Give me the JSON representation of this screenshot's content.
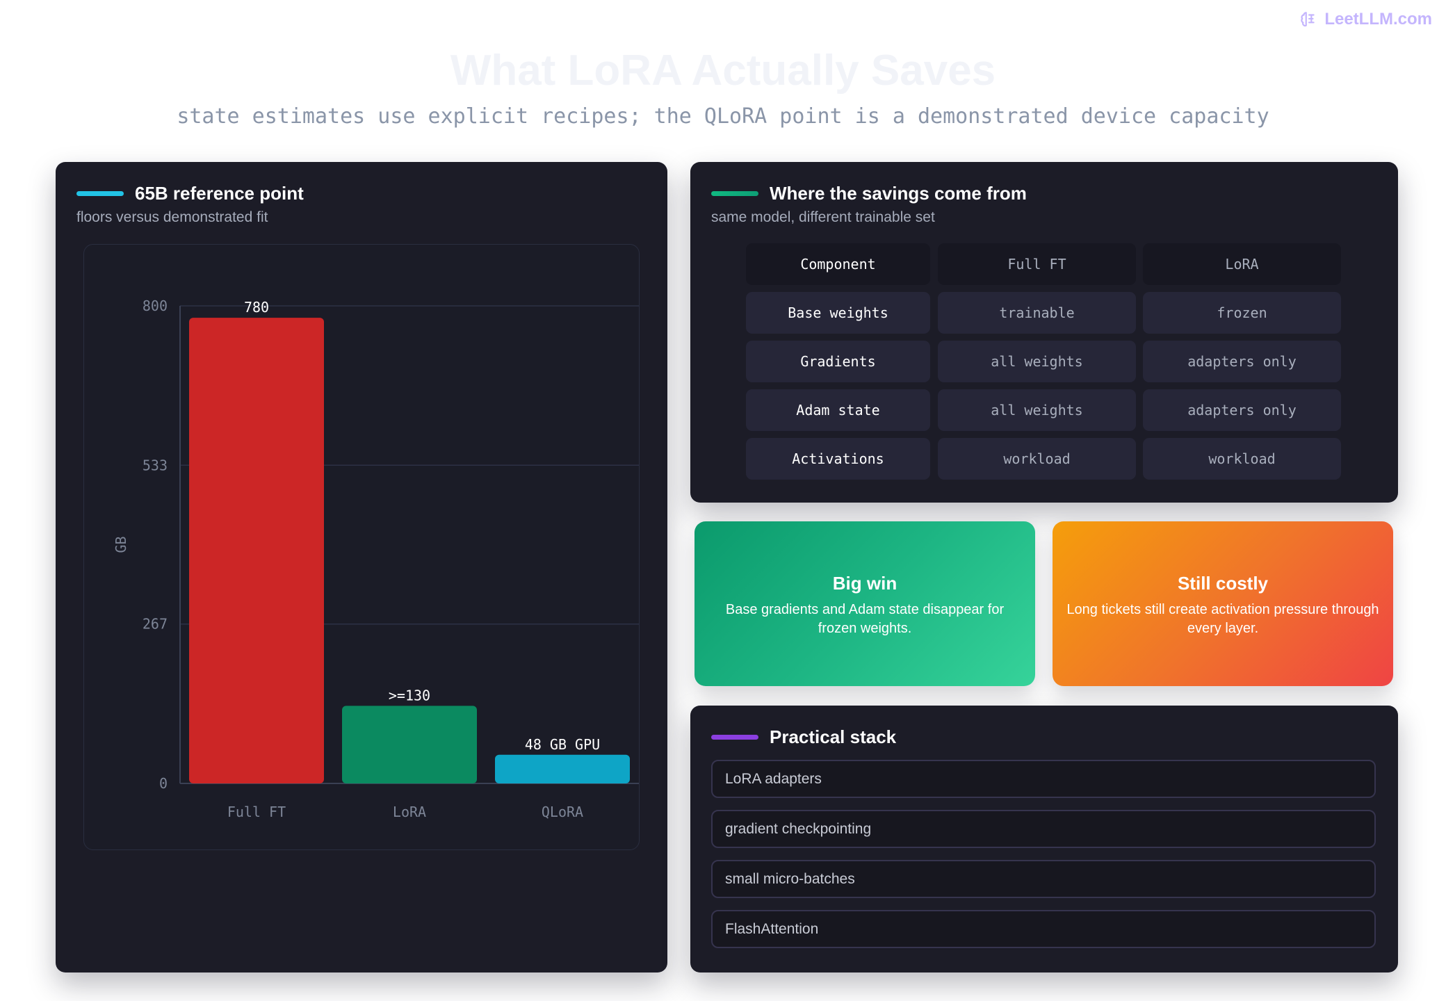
{
  "brand": {
    "name": "LeetLLM.com",
    "icon": "brain-icon",
    "color": "#c4b5fd"
  },
  "header": {
    "title": "What LoRA Actually Saves",
    "subtitle": "state estimates use explicit recipes; the QLoRA point is a demonstrated device capacity"
  },
  "chart_panel": {
    "title": "65B reference point",
    "subtitle": "floors versus demonstrated fit",
    "accent_color": "#22c3e6"
  },
  "chart_data": {
    "type": "bar",
    "categories": [
      "Full FT",
      "LoRA",
      "QLoRA"
    ],
    "values": [
      780,
      130,
      48
    ],
    "data_labels": [
      "780",
      ">=130",
      "48 GB GPU"
    ],
    "colors": [
      "#cc2626",
      "#0b8a60",
      "#0ea5c6"
    ],
    "ylabel": "GB",
    "xlabel": "",
    "title": "",
    "ylim": [
      0,
      800
    ],
    "yticks": [
      "0",
      "267",
      "533",
      "800"
    ],
    "grid": true
  },
  "table_panel": {
    "title": "Where the savings come from",
    "subtitle": "same model, different trainable set",
    "accent_color": "#10b981",
    "headers": [
      "Component",
      "Full FT",
      "LoRA"
    ],
    "rows": [
      [
        "Base weights",
        "trainable",
        "frozen"
      ],
      [
        "Gradients",
        "all weights",
        "adapters only"
      ],
      [
        "Adam state",
        "all weights",
        "adapters only"
      ],
      [
        "Activations",
        "workload",
        "workload"
      ]
    ]
  },
  "cards": [
    {
      "title": "Big win",
      "text": "Base gradients and Adam state disappear for frozen weights."
    },
    {
      "title": "Still costly",
      "text": "Long tickets still create activation pressure through every layer."
    }
  ],
  "stack_panel": {
    "title": "Practical stack",
    "accent_color": "#8b3fe0",
    "items": [
      "LoRA adapters",
      "gradient checkpointing",
      "small micro-batches",
      "FlashAttention"
    ]
  }
}
